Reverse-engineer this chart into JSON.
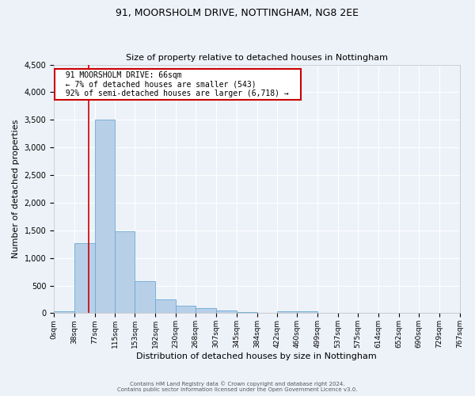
{
  "title1": "91, MOORSHOLM DRIVE, NOTTINGHAM, NG8 2EE",
  "title2": "Size of property relative to detached houses in Nottingham",
  "xlabel": "Distribution of detached houses by size in Nottingham",
  "ylabel": "Number of detached properties",
  "annotation_line1": "  91 MOORSHOLM DRIVE: 66sqm  ",
  "annotation_line2": "  ← 7% of detached houses are smaller (543)  ",
  "annotation_line3": "  92% of semi-detached houses are larger (6,718) →  ",
  "property_size_sqm": 66,
  "bin_edges": [
    0,
    38,
    77,
    115,
    153,
    192,
    230,
    268,
    307,
    345,
    384,
    422,
    460,
    499,
    537,
    575,
    614,
    652,
    690,
    729,
    767
  ],
  "bar_heights": [
    30,
    1270,
    3500,
    1480,
    580,
    250,
    140,
    90,
    50,
    20,
    10,
    40,
    30,
    0,
    0,
    0,
    0,
    0,
    0,
    0
  ],
  "bar_color": "#b8cfe8",
  "bar_edge_color": "#6aaad4",
  "vline_x": 66,
  "vline_color": "#cc0000",
  "annotation_box_color": "#cc0000",
  "background_color": "#edf2f9",
  "grid_color": "#ffffff",
  "ylim": [
    0,
    4500
  ],
  "yticks": [
    0,
    500,
    1000,
    1500,
    2000,
    2500,
    3000,
    3500,
    4000,
    4500
  ],
  "footer_line1": "Contains HM Land Registry data © Crown copyright and database right 2024.",
  "footer_line2": "Contains public sector information licensed under the Open Government Licence v3.0."
}
